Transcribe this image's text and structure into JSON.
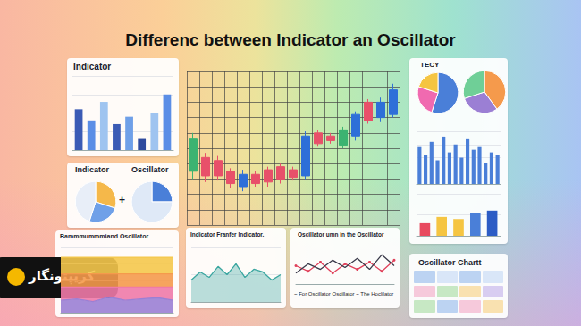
{
  "title": "Differenc between Indicator an Oscillator",
  "logo": "کریپتونگار",
  "chart_data": [
    {
      "type": "bar",
      "title": "Indicator",
      "categories": [
        null,
        null,
        null,
        null,
        null,
        null,
        null,
        null
      ],
      "values": [
        55,
        40,
        65,
        35,
        45,
        15,
        50,
        75
      ],
      "colors": [
        "#3b5bb5",
        "#5b8ee6",
        "#9fc4f0",
        "#3b5bb5",
        "#6fa0e8",
        "#2e4a9e",
        "#9fc4f0",
        "#5b8ee6"
      ],
      "ylim": [
        0,
        100
      ],
      "yticks": [
        0,
        25,
        50,
        75,
        100
      ],
      "grid": true,
      "tick_labels": false
    },
    {
      "type": "candlestick",
      "categories": [
        null,
        null,
        null,
        null,
        null,
        null,
        null,
        null,
        null,
        null,
        null,
        null,
        null,
        null,
        null,
        null,
        null
      ],
      "values": [
        [
          35,
          56,
          30,
          60
        ],
        [
          44,
          32,
          28,
          47
        ],
        [
          42,
          32,
          29,
          45
        ],
        [
          35,
          27,
          24,
          37
        ],
        [
          25,
          33,
          22,
          36
        ],
        [
          33,
          27,
          25,
          35
        ],
        [
          36,
          28,
          25,
          38
        ],
        [
          38,
          30,
          27,
          40
        ],
        [
          36,
          31,
          29,
          38
        ],
        [
          32,
          58,
          30,
          61
        ],
        [
          60,
          53,
          51,
          62
        ],
        [
          58,
          55,
          53,
          60
        ],
        [
          52,
          62,
          50,
          64
        ],
        [
          58,
          72,
          55,
          74
        ],
        [
          80,
          68,
          66,
          82
        ],
        [
          70,
          80,
          67,
          83
        ],
        [
          72,
          88,
          70,
          92
        ]
      ],
      "colors": [
        "#3cb371",
        "#e8506a",
        "#e8506a",
        "#e8506a",
        "#2e6fd8",
        "#e8506a",
        "#e8506a",
        "#e8506a",
        "#e8506a",
        "#2e6fd8",
        "#e8506a",
        "#e8506a",
        "#3cb371",
        "#2e6fd8",
        "#e8506a",
        "#2e6fd8",
        "#2e6fd8"
      ],
      "ylim": [
        0,
        100
      ],
      "yticks": [
        0,
        10,
        20,
        30,
        40,
        50,
        60,
        70,
        80,
        90,
        100
      ],
      "grid": true,
      "tick_labels": false
    },
    {
      "type": "pie",
      "title": "Indicator",
      "values": [
        30,
        25,
        45
      ],
      "colors": [
        "#f5b84a",
        "#6fa0e8",
        "#e8eef8"
      ]
    },
    {
      "type": "pie",
      "title": "Oscillator",
      "annotation": "+",
      "values": [
        25,
        75
      ],
      "colors": [
        "#4a7fd8",
        "#dfe9f7"
      ]
    },
    {
      "type": "area",
      "title": "Bammmummmiand Oscillator",
      "stacked": true,
      "categories": [
        null,
        null,
        null,
        null,
        null,
        null,
        null,
        null
      ],
      "series": [
        {
          "color": "#9b7fd4",
          "values": [
            20,
            22,
            18,
            25,
            20,
            22,
            24,
            20
          ]
        },
        {
          "color": "#f07aa8",
          "values": [
            20,
            18,
            22,
            15,
            20,
            18,
            16,
            20
          ]
        },
        {
          "color": "#f59a4c",
          "values": [
            20,
            20,
            20,
            20,
            20,
            20,
            20,
            20
          ]
        },
        {
          "color": "#f5c84c",
          "values": [
            25,
            25,
            25,
            25,
            25,
            25,
            25,
            25
          ]
        }
      ],
      "ylim": [
        0,
        100
      ],
      "yticks": [
        0,
        25,
        50,
        75,
        100
      ],
      "grid": true,
      "tick_labels": false
    },
    {
      "type": "area",
      "title": "Indicator Franfer Indicator.",
      "categories": [
        null,
        null,
        null,
        null,
        null,
        null,
        null,
        null,
        null,
        null,
        null
      ],
      "values": [
        40,
        55,
        45,
        65,
        50,
        70,
        45,
        60,
        55,
        40,
        50
      ],
      "color": "#3aa6a0",
      "ylim": [
        0,
        100
      ],
      "yticks": [
        0,
        50,
        100
      ],
      "grid": true,
      "tick_labels": false
    },
    {
      "type": "line",
      "title": "Oscillator umn in the Oscillator",
      "subtitle": "~ For Oscillator Oscillator ~ The Hoclilator",
      "categories": [
        null,
        null,
        null,
        null,
        null,
        null,
        null,
        null,
        null
      ],
      "series": [
        {
          "color": "#e0405a",
          "marker": "circle",
          "values": [
            50,
            35,
            60,
            30,
            55,
            40,
            60,
            35,
            65
          ]
        },
        {
          "color": "#3a3a4a",
          "values": [
            30,
            55,
            40,
            65,
            45,
            70,
            40,
            80,
            50
          ]
        }
      ],
      "ylim": [
        0,
        100
      ],
      "yticks": [
        0,
        50,
        100
      ],
      "grid": false,
      "tick_labels": false
    },
    {
      "type": "pie",
      "title": "TECY",
      "values": [
        55,
        25,
        20
      ],
      "colors": [
        "#4a7fd8",
        "#f06ab0",
        "#f5c542"
      ]
    },
    {
      "type": "pie",
      "values": [
        40,
        30,
        30
      ],
      "colors": [
        "#f59a4c",
        "#9b7fd4",
        "#6fcf97"
      ]
    },
    {
      "type": "bar",
      "categories": [
        null,
        null,
        null,
        null,
        null,
        null,
        null,
        null,
        null,
        null,
        null,
        null,
        null,
        null
      ],
      "values": [
        70,
        55,
        80,
        45,
        90,
        60,
        75,
        50,
        85,
        65,
        70,
        40,
        60,
        55
      ],
      "color": "#4a7fd8",
      "ylim": [
        0,
        100
      ],
      "yticks": [
        0,
        25,
        50,
        75,
        100
      ],
      "grid": true,
      "tick_labels": false
    },
    {
      "type": "bar",
      "categories": [
        null,
        null,
        null,
        null,
        null
      ],
      "values": [
        30,
        45,
        40,
        55,
        60
      ],
      "colors": [
        "#e84a5f",
        "#f5c542",
        "#f5c542",
        "#4a7fd8",
        "#2c5cc5"
      ],
      "ylim": [
        0,
        100
      ],
      "yticks": [
        0,
        50,
        100
      ],
      "grid": true,
      "tick_labels": false
    },
    {
      "type": "table",
      "title": "Oscillator Chartt"
    }
  ]
}
